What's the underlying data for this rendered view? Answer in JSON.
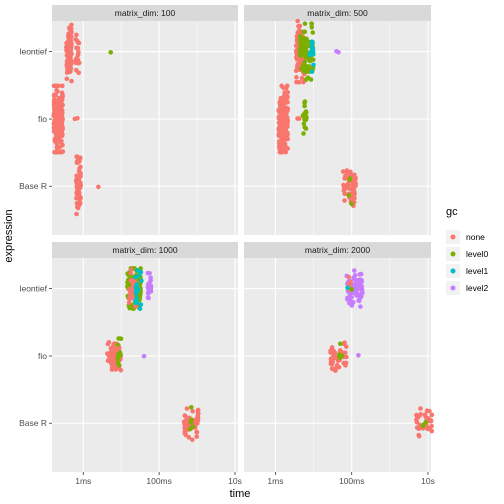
{
  "chart_data": {
    "type": "scatter",
    "subtype": "faceted beeswarm (autoplot of bench::mark results)",
    "xlabel": "time",
    "ylabel": "expression",
    "x_scale": "log10",
    "x_unit": "seconds",
    "x_range": [
      0.00015,
      12
    ],
    "x_ticks": [
      {
        "value": 0.001,
        "label": "1ms"
      },
      {
        "value": 0.1,
        "label": "100ms"
      },
      {
        "value": 10,
        "label": "10s"
      }
    ],
    "categories": [
      "leontief",
      "fio",
      "Base R"
    ],
    "legend": {
      "title": "gc",
      "position": "right",
      "entries": [
        {
          "name": "none",
          "color": "#F8766D"
        },
        {
          "name": "level0",
          "color": "#7CAE00"
        },
        {
          "name": "level1",
          "color": "#00BFC4"
        },
        {
          "name": "level2",
          "color": "#C77CFF"
        }
      ]
    },
    "facets": [
      {
        "strip": "matrix_dim: 100",
        "groups": [
          {
            "category": "leontief",
            "clusters": [
              {
                "gc": "none",
                "center": 0.00042,
                "spread": 0.28,
                "count": 110,
                "width": 0.14
              },
              {
                "gc": "none",
                "center": 0.0007,
                "spread": 0.12,
                "count": 22,
                "width": 0.1
              }
            ],
            "points": [
              {
                "gc": "level0",
                "time": 0.0053
              }
            ]
          },
          {
            "category": "fio",
            "clusters": [
              {
                "gc": "none",
                "center": 0.00022,
                "spread": 0.35,
                "count": 210,
                "width": 0.24
              }
            ],
            "points": [
              {
                "gc": "none",
                "time": 0.0006
              },
              {
                "gc": "none",
                "time": 0.0007
              }
            ]
          },
          {
            "category": "Base R",
            "clusters": [
              {
                "gc": "none",
                "center": 0.00075,
                "spread": 0.28,
                "count": 65,
                "width": 0.12
              }
            ],
            "points": [
              {
                "gc": "none",
                "time": 0.0025
              }
            ]
          }
        ]
      },
      {
        "strip": "matrix_dim: 500",
        "groups": [
          {
            "category": "leontief",
            "clusters": [
              {
                "gc": "none",
                "center": 0.0045,
                "spread": 0.3,
                "count": 110,
                "width": 0.22
              },
              {
                "gc": "level0",
                "center": 0.0065,
                "spread": 0.25,
                "count": 80,
                "width": 0.36
              },
              {
                "gc": "level1",
                "center": 0.009,
                "spread": 0.1,
                "count": 14,
                "width": 0.12
              }
            ],
            "points": [
              {
                "gc": "level2",
                "time": 0.04
              },
              {
                "gc": "level2",
                "time": 0.045
              }
            ]
          },
          {
            "category": "fio",
            "clusters": [
              {
                "gc": "none",
                "center": 0.0016,
                "spread": 0.35,
                "count": 180,
                "width": 0.24
              },
              {
                "gc": "level0",
                "center": 0.0058,
                "spread": 0.12,
                "count": 18,
                "width": 0.1
              }
            ],
            "points": [
              {
                "gc": "none",
                "time": 0.0042
              },
              {
                "gc": "none",
                "time": 0.0038
              }
            ]
          },
          {
            "category": "Base R",
            "clusters": [
              {
                "gc": "none",
                "center": 0.085,
                "spread": 0.1,
                "count": 60,
                "width": 0.36
              },
              {
                "gc": "level0",
                "center": 0.09,
                "spread": 0.05,
                "count": 4,
                "width": 0.1
              }
            ],
            "points": []
          }
        ]
      },
      {
        "strip": "matrix_dim: 1000",
        "groups": [
          {
            "category": "leontief",
            "clusters": [
              {
                "gc": "level0",
                "center": 0.022,
                "spread": 0.1,
                "count": 110,
                "width": 0.36
              },
              {
                "gc": "none",
                "center": 0.02,
                "spread": 0.08,
                "count": 30,
                "width": 0.2
              },
              {
                "gc": "level1",
                "center": 0.028,
                "spread": 0.1,
                "count": 20,
                "width": 0.18
              },
              {
                "gc": "level2",
                "center": 0.055,
                "spread": 0.07,
                "count": 18,
                "width": 0.1
              }
            ],
            "points": []
          },
          {
            "category": "fio",
            "clusters": [
              {
                "gc": "none",
                "center": 0.0065,
                "spread": 0.06,
                "count": 60,
                "width": 0.36
              },
              {
                "gc": "level0",
                "center": 0.009,
                "spread": 0.05,
                "count": 10,
                "width": 0.1
              }
            ],
            "points": [
              {
                "gc": "level2",
                "time": 0.04
              }
            ]
          },
          {
            "category": "Base R",
            "clusters": [
              {
                "gc": "none",
                "center": 0.7,
                "spread": 0.04,
                "count": 55,
                "width": 0.38
              },
              {
                "gc": "level0",
                "center": 0.72,
                "spread": 0.02,
                "count": 5,
                "width": 0.1
              }
            ],
            "points": []
          }
        ]
      },
      {
        "strip": "matrix_dim: 2000",
        "groups": [
          {
            "category": "leontief",
            "clusters": [
              {
                "gc": "level2",
                "center": 0.12,
                "spread": 0.06,
                "count": 80,
                "width": 0.42
              },
              {
                "gc": "none",
                "center": 0.09,
                "spread": 0.03,
                "count": 6,
                "width": 0.06
              }
            ],
            "points": [
              {
                "gc": "level1",
                "time": 0.078
              },
              {
                "gc": "level0",
                "time": 0.1
              }
            ]
          },
          {
            "category": "fio",
            "clusters": [
              {
                "gc": "none",
                "center": 0.045,
                "spread": 0.04,
                "count": 40,
                "width": 0.42
              },
              {
                "gc": "level0",
                "center": 0.05,
                "spread": 0.03,
                "count": 4,
                "width": 0.12
              }
            ],
            "points": [
              {
                "gc": "level2",
                "time": 0.15
              }
            ]
          },
          {
            "category": "Base R",
            "clusters": [
              {
                "gc": "none",
                "center": 8.0,
                "spread": 0.02,
                "count": 40,
                "width": 0.42
              },
              {
                "gc": "level0",
                "center": 8.1,
                "spread": 0.01,
                "count": 4,
                "width": 0.1
              }
            ],
            "points": []
          }
        ]
      }
    ]
  }
}
